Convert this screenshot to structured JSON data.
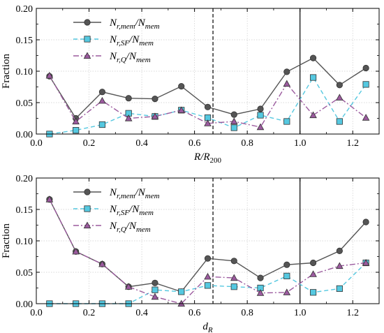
{
  "chart_data": [
    {
      "type": "line",
      "xlabel": "R/R",
      "xlabel_sub": "200",
      "ylabel": "Fraction",
      "xlim": [
        0.0,
        1.3
      ],
      "ylim": [
        0.0,
        0.2
      ],
      "xticks": [
        "0.0",
        "0.2",
        "0.4",
        "0.6",
        "0.8",
        "1.0",
        "1.2"
      ],
      "yticks": [
        "0.00",
        "0.05",
        "0.10",
        "0.15",
        "0.20"
      ],
      "grid": true,
      "legend_position": "upper-left",
      "vlines": [
        {
          "x": 0.67,
          "style": "dashed"
        },
        {
          "x": 1.0,
          "style": "solid"
        }
      ],
      "x": [
        0.05,
        0.15,
        0.25,
        0.35,
        0.45,
        0.55,
        0.65,
        0.75,
        0.85,
        0.95,
        1.05,
        1.15,
        1.25
      ],
      "series": [
        {
          "name": "N_{r,mem}/N_{mem}",
          "color": "#555555",
          "marker": "circle",
          "line": "solid",
          "values": [
            0.092,
            0.025,
            0.067,
            0.057,
            0.056,
            0.076,
            0.043,
            0.031,
            0.04,
            0.099,
            0.121,
            0.078,
            0.105
          ]
        },
        {
          "name": "N_{r,SF}/N_{mem}",
          "color": "#55c8e0",
          "marker": "square",
          "line": "dashed",
          "values": [
            0.0,
            0.006,
            0.015,
            0.033,
            0.028,
            0.038,
            0.026,
            0.01,
            0.03,
            0.02,
            0.09,
            0.02,
            0.079
          ]
        },
        {
          "name": "N_{r,Q}/N_{mem}",
          "color": "#9b5a9e",
          "marker": "triangle",
          "line": "dashdot",
          "values": [
            0.093,
            0.02,
            0.053,
            0.025,
            0.028,
            0.038,
            0.017,
            0.02,
            0.011,
            0.08,
            0.03,
            0.058,
            0.026
          ]
        }
      ]
    },
    {
      "type": "line",
      "xlabel": "d",
      "xlabel_sub": "R",
      "ylabel": "Fraction",
      "xlim": [
        0.0,
        1.3
      ],
      "ylim": [
        0.0,
        0.2
      ],
      "xticks": [
        "0.0",
        "0.2",
        "0.4",
        "0.6",
        "0.8",
        "1.0",
        "1.2"
      ],
      "yticks": [
        "0.00",
        "0.05",
        "0.10",
        "0.15",
        "0.20"
      ],
      "grid": true,
      "legend_position": "upper-left",
      "vlines": [
        {
          "x": 0.67,
          "style": "dashed"
        },
        {
          "x": 1.0,
          "style": "solid"
        }
      ],
      "x": [
        0.05,
        0.15,
        0.25,
        0.35,
        0.45,
        0.55,
        0.65,
        0.75,
        0.85,
        0.95,
        1.05,
        1.15,
        1.25
      ],
      "series": [
        {
          "name": "N_{r,mem}/N_{mem}",
          "color": "#555555",
          "marker": "circle",
          "line": "solid",
          "values": [
            0.166,
            0.083,
            0.063,
            0.027,
            0.033,
            0.019,
            0.072,
            0.068,
            0.041,
            0.062,
            0.065,
            0.084,
            0.13
          ]
        },
        {
          "name": "N_{r,SF}/N_{mem}",
          "color": "#55c8e0",
          "marker": "square",
          "line": "dashed",
          "values": [
            0.0,
            0.0,
            0.0,
            0.0,
            0.022,
            0.019,
            0.029,
            0.027,
            0.025,
            0.044,
            0.018,
            0.024,
            0.065
          ]
        },
        {
          "name": "N_{r,Q}/N_{mem}",
          "color": "#9b5a9e",
          "marker": "triangle",
          "line": "dashdot",
          "values": [
            0.166,
            0.083,
            0.063,
            0.027,
            0.011,
            0.0,
            0.043,
            0.041,
            0.017,
            0.018,
            0.047,
            0.06,
            0.065
          ]
        }
      ]
    }
  ]
}
